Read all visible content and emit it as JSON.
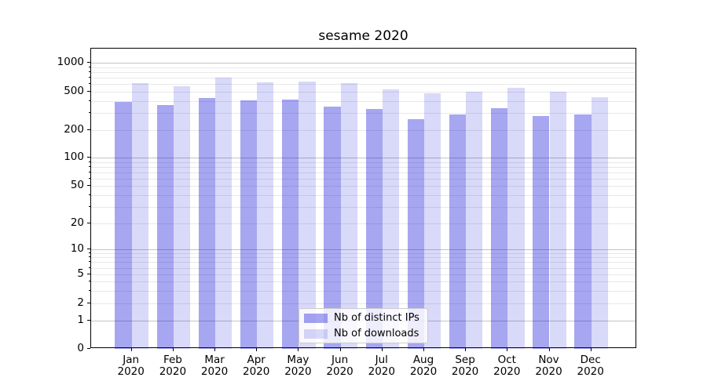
{
  "chart_data": {
    "type": "bar",
    "title": "sesame 2020",
    "categories": [
      "Jan 2020",
      "Feb 2020",
      "Mar 2020",
      "Apr 2020",
      "May 2020",
      "Jun 2020",
      "Jul 2020",
      "Aug 2020",
      "Sep 2020",
      "Oct 2020",
      "Nov 2020",
      "Dec 2020"
    ],
    "series": [
      {
        "name": "Nb of distinct IPs",
        "color": "rgba(0,0,215,0.35)",
        "values": [
          395,
          363,
          430,
          408,
          413,
          347,
          330,
          260,
          291,
          336,
          280,
          288
        ]
      },
      {
        "name": "Nb of downloads",
        "color": "rgba(0,0,215,0.15)",
        "values": [
          620,
          570,
          700,
          625,
          640,
          620,
          530,
          480,
          505,
          550,
          505,
          435
        ]
      }
    ],
    "y_axis": {
      "scale": "symlog",
      "tick_labels": [
        "0",
        "1",
        "2",
        "5",
        "10",
        "20",
        "50",
        "100",
        "200",
        "500",
        "1000"
      ],
      "range": [
        0,
        1400
      ]
    },
    "x_axis": {
      "tick_labels_line2": "2020"
    },
    "legend": {
      "position": "lower center",
      "entries": [
        "Nb of distinct IPs",
        "Nb of downloads"
      ]
    },
    "grid": "both",
    "colors": {
      "distinct_ips_fill": "#a6a6f1",
      "downloads_fill": "#d9d9fa",
      "grid_major": "#c3c3c3",
      "grid_minor": "#e8e8e8",
      "axis": "#000000"
    }
  }
}
